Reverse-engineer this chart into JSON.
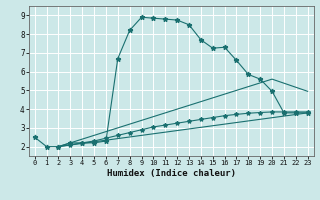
{
  "xlabel": "Humidex (Indice chaleur)",
  "bg_color": "#cce8e8",
  "grid_color": "#ffffff",
  "line_color": "#1a7070",
  "ylim": [
    1.5,
    9.5
  ],
  "xlim": [
    -0.5,
    23.5
  ],
  "yticks": [
    2,
    3,
    4,
    5,
    6,
    7,
    8,
    9
  ],
  "xticks": [
    0,
    1,
    2,
    3,
    4,
    5,
    6,
    7,
    8,
    9,
    10,
    11,
    12,
    13,
    14,
    15,
    16,
    17,
    18,
    19,
    20,
    21,
    22,
    23
  ],
  "curve1_x": [
    0,
    1,
    2,
    3,
    4,
    5,
    6,
    7,
    8,
    9,
    10,
    11,
    12,
    13,
    14,
    15,
    16,
    17,
    18,
    19,
    20,
    21,
    22,
    23
  ],
  "curve1_y": [
    2.5,
    2.0,
    2.0,
    2.2,
    2.2,
    2.2,
    2.3,
    6.7,
    8.2,
    8.9,
    8.85,
    8.8,
    8.75,
    8.5,
    7.7,
    7.25,
    7.3,
    6.6,
    5.85,
    5.6,
    4.95,
    3.8,
    3.8,
    3.8
  ],
  "curve2_x": [
    2,
    23
  ],
  "curve2_y": [
    2.0,
    3.8
  ],
  "curve3_x": [
    2,
    20,
    23
  ],
  "curve3_y": [
    2.0,
    5.6,
    4.95
  ],
  "curve4_x": [
    2,
    3,
    4,
    5,
    6,
    7,
    8,
    9,
    10,
    11,
    12,
    13,
    14,
    15,
    16,
    17,
    18,
    19,
    20,
    21,
    22,
    23
  ],
  "curve4_y": [
    2.0,
    2.1,
    2.2,
    2.3,
    2.45,
    2.6,
    2.75,
    2.9,
    3.05,
    3.15,
    3.25,
    3.35,
    3.45,
    3.55,
    3.65,
    3.72,
    3.78,
    3.82,
    3.85,
    3.85,
    3.85,
    3.85
  ]
}
